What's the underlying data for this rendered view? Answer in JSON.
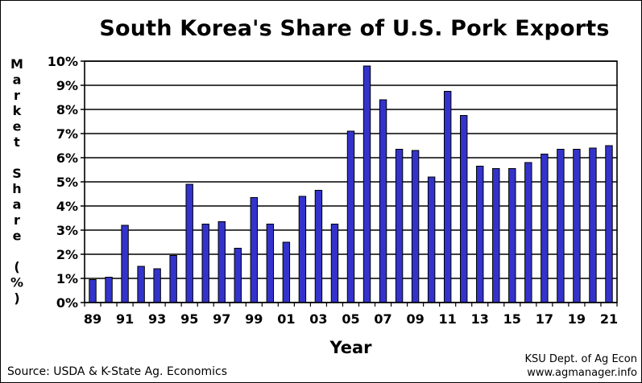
{
  "chart_data": {
    "type": "bar",
    "title": "South Korea's Share of U.S. Pork Exports",
    "xlabel": "Year",
    "ylabel": "Market Share (%)",
    "ylim": [
      0,
      10
    ],
    "yticks": [
      "0%",
      "1%",
      "2%",
      "3%",
      "4%",
      "5%",
      "6%",
      "7%",
      "8%",
      "9%",
      "10%"
    ],
    "categories": [
      "89",
      "90",
      "91",
      "92",
      "93",
      "94",
      "95",
      "96",
      "97",
      "98",
      "99",
      "00",
      "01",
      "02",
      "03",
      "04",
      "05",
      "06",
      "07",
      "08",
      "09",
      "10",
      "11",
      "12",
      "13",
      "14",
      "15",
      "16",
      "17",
      "18",
      "19",
      "20",
      "21"
    ],
    "xtick_labels": [
      "89",
      "91",
      "93",
      "95",
      "97",
      "99",
      "01",
      "03",
      "05",
      "07",
      "09",
      "11",
      "13",
      "15",
      "17",
      "19",
      "21"
    ],
    "values": [
      0.95,
      1.05,
      3.2,
      1.5,
      1.4,
      1.95,
      4.9,
      3.25,
      3.35,
      2.25,
      4.35,
      3.25,
      2.5,
      4.4,
      4.65,
      3.25,
      7.1,
      9.8,
      8.4,
      6.35,
      6.3,
      5.2,
      8.75,
      7.75,
      5.65,
      5.55,
      5.55,
      5.8,
      6.15,
      6.35,
      6.35,
      6.4,
      6.5
    ],
    "grid": true,
    "bar_color": "#3333cc"
  },
  "footer": {
    "source": "Source:  USDA & K-State Ag. Economics",
    "credit_line1": "KSU Dept. of Ag Econ",
    "credit_line2": "www.agmanager.info"
  }
}
